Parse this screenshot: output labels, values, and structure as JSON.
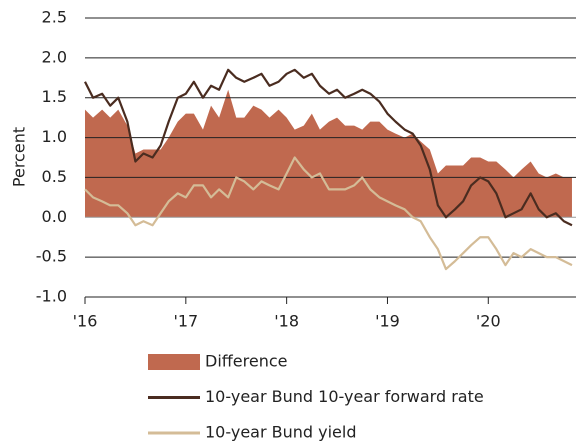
{
  "chart_data": {
    "type": "line",
    "y_label": "Percent",
    "x": [
      2016,
      2016.08,
      2016.17,
      2016.25,
      2016.33,
      2016.42,
      2016.5,
      2016.58,
      2016.67,
      2016.75,
      2016.83,
      2016.92,
      2017,
      2017.08,
      2017.17,
      2017.25,
      2017.33,
      2017.42,
      2017.5,
      2017.58,
      2017.67,
      2017.75,
      2017.83,
      2017.92,
      2018,
      2018.08,
      2018.17,
      2018.25,
      2018.33,
      2018.42,
      2018.5,
      2018.58,
      2018.67,
      2018.75,
      2018.83,
      2018.92,
      2019,
      2019.08,
      2019.17,
      2019.25,
      2019.33,
      2019.42,
      2019.5,
      2019.58,
      2019.67,
      2019.75,
      2019.83,
      2019.92,
      2020,
      2020.08,
      2020.17,
      2020.25,
      2020.33,
      2020.42,
      2020.5,
      2020.58,
      2020.67,
      2020.75,
      2020.83
    ],
    "series": [
      {
        "name": "Difference",
        "kind": "area",
        "color": "#c0694f",
        "values": [
          1.35,
          1.25,
          1.35,
          1.25,
          1.35,
          1.15,
          0.8,
          0.85,
          0.85,
          0.85,
          1.0,
          1.2,
          1.3,
          1.3,
          1.1,
          1.4,
          1.25,
          1.6,
          1.25,
          1.25,
          1.4,
          1.35,
          1.25,
          1.35,
          1.25,
          1.1,
          1.15,
          1.3,
          1.1,
          1.2,
          1.25,
          1.15,
          1.15,
          1.1,
          1.2,
          1.2,
          1.1,
          1.05,
          1.0,
          1.05,
          0.95,
          0.85,
          0.55,
          0.65,
          0.65,
          0.65,
          0.75,
          0.75,
          0.7,
          0.7,
          0.6,
          0.5,
          0.6,
          0.7,
          0.55,
          0.5,
          0.55,
          0.5,
          0.5
        ]
      },
      {
        "name": "10-year Bund 10-year forward rate",
        "kind": "line",
        "color": "#4a2c20",
        "values": [
          1.7,
          1.5,
          1.55,
          1.4,
          1.5,
          1.2,
          0.7,
          0.8,
          0.75,
          0.9,
          1.2,
          1.5,
          1.55,
          1.7,
          1.5,
          1.65,
          1.6,
          1.85,
          1.75,
          1.7,
          1.75,
          1.8,
          1.65,
          1.7,
          1.8,
          1.85,
          1.75,
          1.8,
          1.65,
          1.55,
          1.6,
          1.5,
          1.55,
          1.6,
          1.55,
          1.45,
          1.3,
          1.2,
          1.1,
          1.05,
          0.9,
          0.6,
          0.15,
          0.0,
          0.1,
          0.2,
          0.4,
          0.5,
          0.45,
          0.3,
          0.0,
          0.05,
          0.1,
          0.3,
          0.1,
          0.0,
          0.05,
          -0.05,
          -0.1
        ]
      },
      {
        "name": "10-year Bund yield",
        "kind": "line",
        "color": "#d4bc97",
        "values": [
          0.35,
          0.25,
          0.2,
          0.15,
          0.15,
          0.05,
          -0.1,
          -0.05,
          -0.1,
          0.05,
          0.2,
          0.3,
          0.25,
          0.4,
          0.4,
          0.25,
          0.35,
          0.25,
          0.5,
          0.45,
          0.35,
          0.45,
          0.4,
          0.35,
          0.55,
          0.75,
          0.6,
          0.5,
          0.55,
          0.35,
          0.35,
          0.35,
          0.4,
          0.5,
          0.35,
          0.25,
          0.2,
          0.15,
          0.1,
          0.0,
          -0.05,
          -0.25,
          -0.4,
          -0.65,
          -0.55,
          -0.45,
          -0.35,
          -0.25,
          -0.25,
          -0.4,
          -0.6,
          -0.45,
          -0.5,
          -0.4,
          -0.45,
          -0.5,
          -0.5,
          -0.55,
          -0.6
        ]
      }
    ],
    "xlim": [
      2016,
      2020.87
    ],
    "xticks": [
      {
        "value": 2016,
        "label": "'16"
      },
      {
        "value": 2017,
        "label": "'17"
      },
      {
        "value": 2018,
        "label": "'18"
      },
      {
        "value": 2019,
        "label": "'19"
      },
      {
        "value": 2020,
        "label": "'20"
      }
    ],
    "ylim": [
      -1.0,
      2.5
    ],
    "yticks": [
      {
        "value": 2.5,
        "label": "2.5"
      },
      {
        "value": 2.0,
        "label": "2.0"
      },
      {
        "value": 1.5,
        "label": "1.5"
      },
      {
        "value": 1.0,
        "label": "1.0"
      },
      {
        "value": 0.5,
        "label": "0.5"
      },
      {
        "value": 0.0,
        "label": "0.0"
      },
      {
        "value": -0.5,
        "label": "-0.5"
      },
      {
        "value": -1.0,
        "label": "-1.0"
      }
    ],
    "grid": true,
    "legend": "bottom"
  }
}
